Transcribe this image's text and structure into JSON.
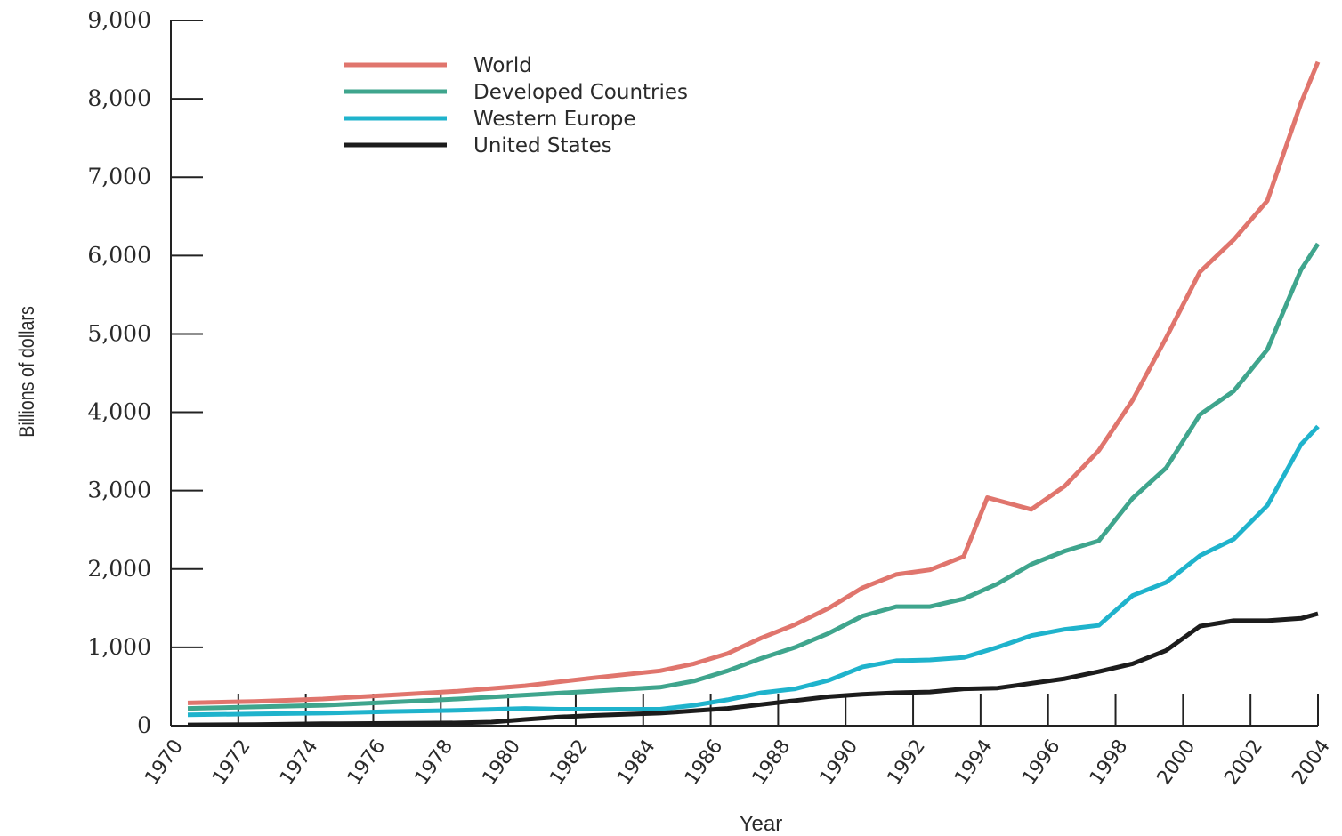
{
  "chart_data": {
    "type": "line",
    "title": "",
    "xlabel": "Year",
    "ylabel": "Billions of dollars",
    "xlim": [
      1970,
      2004
    ],
    "ylim": [
      0,
      9000
    ],
    "x_ticks": [
      "1970",
      "1972",
      "1974",
      "1976",
      "1978",
      "1980",
      "1982",
      "1984",
      "1986",
      "1988",
      "1990",
      "1992",
      "1994",
      "1996",
      "1998",
      "2000",
      "2002",
      "2004"
    ],
    "y_ticks": [
      "0",
      "1,000",
      "2,000",
      "3,000",
      "4,000",
      "5,000",
      "6,000",
      "7,000",
      "8,000",
      "9,000"
    ],
    "grid": false,
    "legend_position": "top-left",
    "series": [
      {
        "name": "World",
        "color": "#e0756d",
        "points": [
          [
            1970.5,
            290
          ],
          [
            1972.5,
            310
          ],
          [
            1974.5,
            340
          ],
          [
            1976.5,
            390
          ],
          [
            1978.5,
            440
          ],
          [
            1980.5,
            510
          ],
          [
            1982.5,
            610
          ],
          [
            1984.5,
            700
          ],
          [
            1985.5,
            790
          ],
          [
            1986.5,
            920
          ],
          [
            1987.5,
            1120
          ],
          [
            1988.5,
            1290
          ],
          [
            1989.5,
            1500
          ],
          [
            1990.5,
            1760
          ],
          [
            1991.5,
            1930
          ],
          [
            1992.5,
            1990
          ],
          [
            1993.5,
            2160
          ],
          [
            1994.2,
            2910
          ],
          [
            1995.5,
            2760
          ],
          [
            1996.5,
            3060
          ],
          [
            1997.5,
            3510
          ],
          [
            1998.5,
            4150
          ],
          [
            1999.5,
            4950
          ],
          [
            2000.5,
            5790
          ],
          [
            2001.5,
            6200
          ],
          [
            2002.5,
            6700
          ],
          [
            2003.5,
            7950
          ],
          [
            2004,
            8470
          ]
        ]
      },
      {
        "name": "Developed Countries",
        "color": "#3fa58d",
        "points": [
          [
            1970.5,
            220
          ],
          [
            1972.5,
            240
          ],
          [
            1974.5,
            260
          ],
          [
            1976.5,
            300
          ],
          [
            1978.5,
            340
          ],
          [
            1980.5,
            390
          ],
          [
            1982.5,
            440
          ],
          [
            1984.5,
            490
          ],
          [
            1985.5,
            570
          ],
          [
            1986.5,
            700
          ],
          [
            1987.5,
            860
          ],
          [
            1988.5,
            1000
          ],
          [
            1989.5,
            1180
          ],
          [
            1990.5,
            1400
          ],
          [
            1991.5,
            1520
          ],
          [
            1992.5,
            1520
          ],
          [
            1993.5,
            1620
          ],
          [
            1994.5,
            1810
          ],
          [
            1995.5,
            2060
          ],
          [
            1996.5,
            2230
          ],
          [
            1997.5,
            2360
          ],
          [
            1998.5,
            2900
          ],
          [
            1999.5,
            3290
          ],
          [
            2000.5,
            3970
          ],
          [
            2001.5,
            4270
          ],
          [
            2002.5,
            4800
          ],
          [
            2003.5,
            5820
          ],
          [
            2004,
            6150
          ]
        ]
      },
      {
        "name": "Western Europe",
        "color": "#1fb3cc",
        "points": [
          [
            1970.5,
            140
          ],
          [
            1972.5,
            150
          ],
          [
            1974.5,
            160
          ],
          [
            1976.5,
            180
          ],
          [
            1978.5,
            195
          ],
          [
            1980.5,
            220
          ],
          [
            1981.5,
            210
          ],
          [
            1982.5,
            210
          ],
          [
            1984.5,
            210
          ],
          [
            1985.5,
            260
          ],
          [
            1986.5,
            330
          ],
          [
            1987.5,
            420
          ],
          [
            1988.5,
            470
          ],
          [
            1989.5,
            580
          ],
          [
            1990.5,
            750
          ],
          [
            1991.5,
            830
          ],
          [
            1992.5,
            840
          ],
          [
            1993.5,
            870
          ],
          [
            1994.5,
            1000
          ],
          [
            1995.5,
            1150
          ],
          [
            1996.5,
            1230
          ],
          [
            1997.5,
            1280
          ],
          [
            1998.5,
            1660
          ],
          [
            1999.5,
            1830
          ],
          [
            2000.5,
            2170
          ],
          [
            2001.5,
            2380
          ],
          [
            2002.5,
            2810
          ],
          [
            2003.5,
            3590
          ],
          [
            2004,
            3820
          ]
        ]
      },
      {
        "name": "United States",
        "color": "#1c1c1c",
        "points": [
          [
            1970.5,
            10
          ],
          [
            1972.5,
            15
          ],
          [
            1974.5,
            25
          ],
          [
            1976.5,
            30
          ],
          [
            1978.5,
            35
          ],
          [
            1979.5,
            45
          ],
          [
            1980.5,
            80
          ],
          [
            1981.5,
            110
          ],
          [
            1982.5,
            130
          ],
          [
            1984.5,
            160
          ],
          [
            1985.5,
            190
          ],
          [
            1986.5,
            220
          ],
          [
            1987.5,
            270
          ],
          [
            1988.5,
            320
          ],
          [
            1989.5,
            370
          ],
          [
            1990.5,
            400
          ],
          [
            1991.5,
            420
          ],
          [
            1992.5,
            430
          ],
          [
            1993.5,
            470
          ],
          [
            1994.5,
            480
          ],
          [
            1995.5,
            540
          ],
          [
            1996.5,
            600
          ],
          [
            1997.5,
            690
          ],
          [
            1998.5,
            790
          ],
          [
            1999.5,
            960
          ],
          [
            2000.5,
            1270
          ],
          [
            2001.5,
            1340
          ],
          [
            2002.5,
            1340
          ],
          [
            2003.5,
            1370
          ],
          [
            2004,
            1430
          ]
        ]
      }
    ]
  }
}
